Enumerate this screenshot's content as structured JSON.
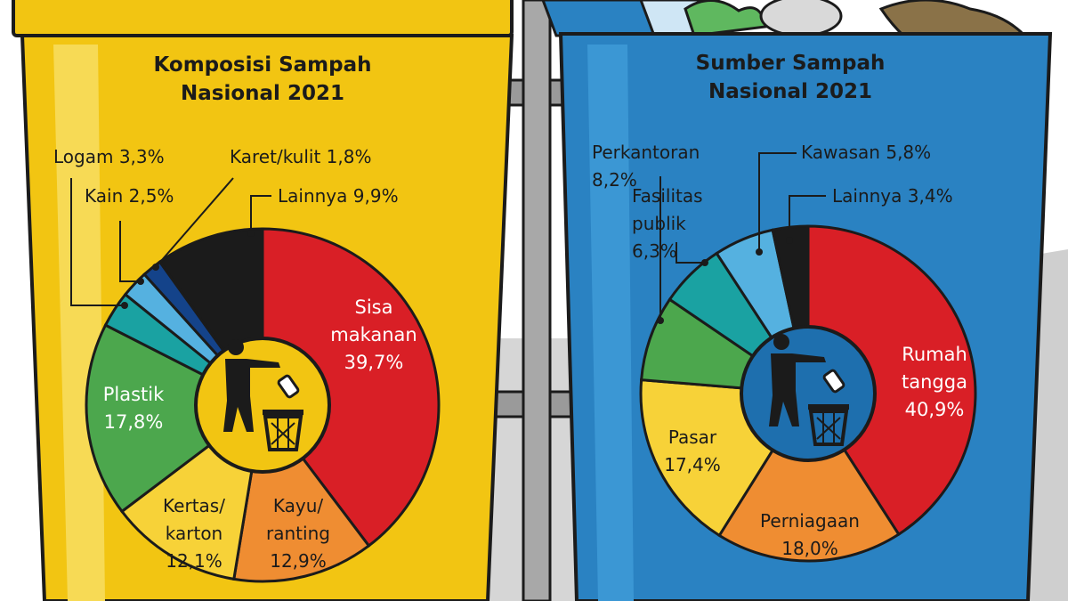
{
  "colors": {
    "yellow_bin": "#f2c512",
    "blue_bin": "#2a82c2",
    "red": "#d91f26",
    "orange": "#ef8d32",
    "yellow": "#f7d238",
    "green": "#4ca74d",
    "teal": "#1aa2a2",
    "light_blue": "#55b1e0",
    "navy": "#14438a",
    "black": "#1b1b1b",
    "center_yellow": "#f2c512",
    "center_blue": "#1e6fae"
  },
  "icons": [
    "trash-disposal-icon",
    "trash-disposal-icon"
  ],
  "chart_data": [
    {
      "type": "pie",
      "title": "Komposisi Sampah Nasional 2021",
      "title_lines": [
        "Komposisi Sampah",
        "Nasional 2021"
      ],
      "unit": "%",
      "slices": [
        {
          "name": "Sisa makanan",
          "value": 39.7,
          "label_lines": [
            "Sisa",
            "makanan",
            "39,7%"
          ],
          "color": "#d91f26"
        },
        {
          "name": "Kayu/ranting",
          "value": 12.9,
          "label_lines": [
            "Kayu/",
            "ranting",
            "12,9%"
          ],
          "color": "#ef8d32"
        },
        {
          "name": "Kertas/karton",
          "value": 12.1,
          "label_lines": [
            "Kertas/",
            "karton",
            "12,1%"
          ],
          "color": "#f7d238"
        },
        {
          "name": "Plastik",
          "value": 17.8,
          "label_lines": [
            "Plastik",
            "17,8%"
          ],
          "color": "#4ca74d"
        },
        {
          "name": "Logam",
          "value": 3.3,
          "label_lines": [
            "Logam 3,3%"
          ],
          "color": "#1aa2a2"
        },
        {
          "name": "Kain",
          "value": 2.5,
          "label_lines": [
            "Kain 2,5%"
          ],
          "color": "#55b1e0"
        },
        {
          "name": "Karet/kulit",
          "value": 1.8,
          "label_lines": [
            "Karet/kulit 1,8%"
          ],
          "color": "#14438a"
        },
        {
          "name": "Lainnya",
          "value": 9.9,
          "label_lines": [
            "Lainnya 9,9%"
          ],
          "color": "#1b1b1b"
        }
      ]
    },
    {
      "type": "pie",
      "title": "Sumber Sampah Nasional 2021",
      "title_lines": [
        "Sumber Sampah",
        "Nasional 2021"
      ],
      "unit": "%",
      "slices": [
        {
          "name": "Rumah tangga",
          "value": 40.9,
          "label_lines": [
            "Rumah",
            "tangga",
            "40,9%"
          ],
          "color": "#d91f26"
        },
        {
          "name": "Perniagaan",
          "value": 18.0,
          "label_lines": [
            "Perniagaan",
            "18,0%"
          ],
          "color": "#ef8d32"
        },
        {
          "name": "Pasar",
          "value": 17.4,
          "label_lines": [
            "Pasar",
            "17,4%"
          ],
          "color": "#f7d238"
        },
        {
          "name": "Perkantoran",
          "value": 8.2,
          "label_lines": [
            "Perkantoran",
            "8,2%"
          ],
          "color": "#4ca74d"
        },
        {
          "name": "Fasilitas publik",
          "value": 6.3,
          "label_lines": [
            "Fasilitas",
            "publik",
            "6,3%"
          ],
          "color": "#1aa2a2"
        },
        {
          "name": "Kawasan",
          "value": 5.8,
          "label_lines": [
            "Kawasan 5,8%"
          ],
          "color": "#55b1e0"
        },
        {
          "name": "Lainnya",
          "value": 3.4,
          "label_lines": [
            "Lainnya 3,4%"
          ],
          "color": "#1b1b1b"
        }
      ]
    }
  ]
}
